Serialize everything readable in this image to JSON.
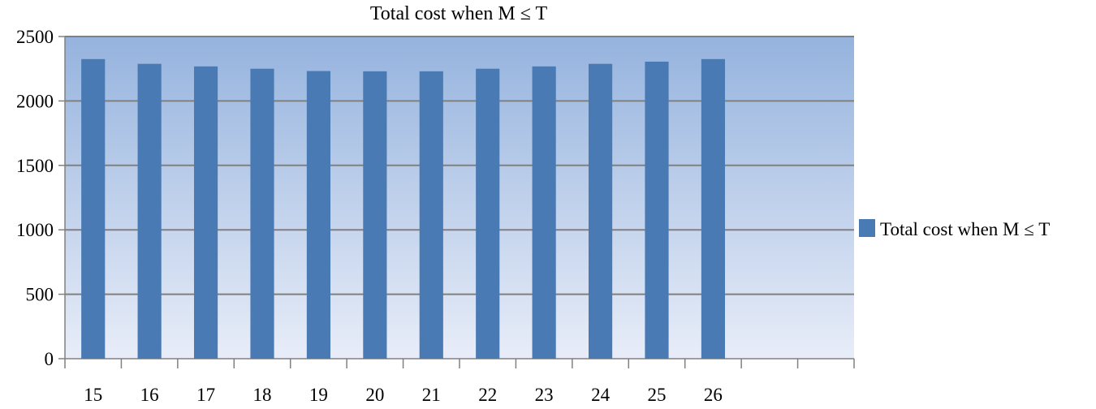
{
  "chart_data": {
    "type": "bar",
    "title": "Total cost when M ≤ T",
    "xlabel": "",
    "ylabel": "",
    "categories": [
      "15",
      "16",
      "17",
      "18",
      "19",
      "20",
      "21",
      "22",
      "23",
      "24",
      "25",
      "26",
      "",
      ""
    ],
    "series": [
      {
        "name": "Total cost when M ≤ T",
        "values": [
          2325,
          2288,
          2268,
          2250,
          2232,
          2230,
          2230,
          2250,
          2268,
          2288,
          2305,
          2325,
          null,
          null
        ]
      }
    ],
    "ylim": [
      0,
      2500
    ],
    "yticks": [
      0,
      500,
      1000,
      1500,
      2000,
      2500
    ],
    "grid": true,
    "legend_position": "right",
    "colors": {
      "bar": "#4a7ab3",
      "plot_bg_top": "#95b3de",
      "plot_bg_bottom": "#e8edf8",
      "gridline": "#808080",
      "axis": "#808080"
    }
  }
}
